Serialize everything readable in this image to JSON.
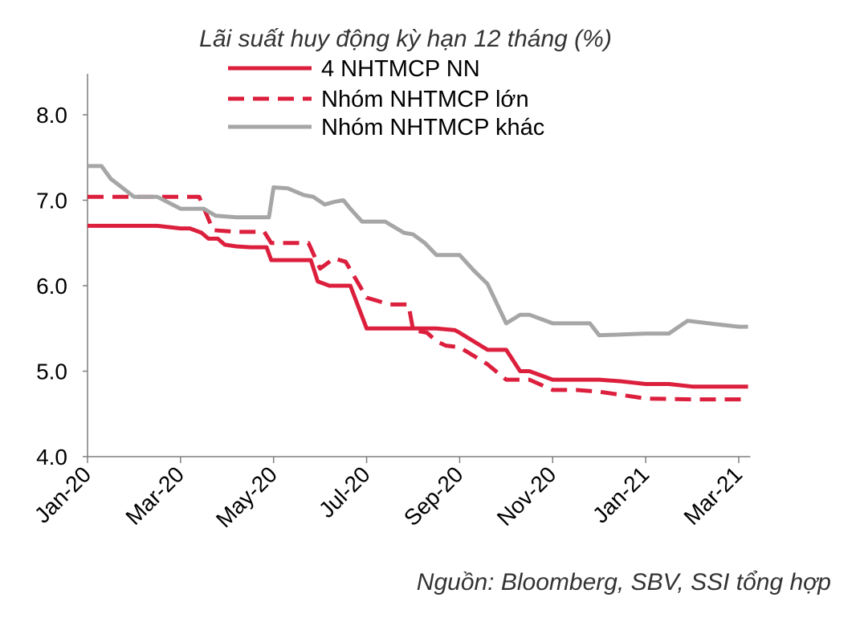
{
  "chart_data": {
    "type": "line",
    "title": "Lãi suất huy động kỳ hạn 12 tháng (%)",
    "xlabel": "",
    "ylabel": "",
    "ylim": [
      4.0,
      8.5
    ],
    "yticks": [
      4.0,
      5.0,
      6.0,
      7.0,
      8.0
    ],
    "ytick_labels": [
      "4.0",
      "5.0",
      "6.0",
      "7.0",
      "8.0"
    ],
    "xlim": [
      0,
      14.25
    ],
    "xticks": [
      0,
      2,
      4,
      6,
      8,
      10,
      12,
      14
    ],
    "xtick_labels": [
      "Jan-20",
      "Mar-20",
      "May-20",
      "Jul-20",
      "Sep-20",
      "Nov-20",
      "Jan-21",
      "Mar-21"
    ],
    "x_unit": "months since Jan-20",
    "legend_position": "top-center",
    "series": [
      {
        "name": "4 NHTMCP NN",
        "color": "#dc1f3d",
        "dash": "solid",
        "points": [
          [
            0,
            6.7
          ],
          [
            0.5,
            6.7
          ],
          [
            1.0,
            6.7
          ],
          [
            1.5,
            6.7
          ],
          [
            2.0,
            6.67
          ],
          [
            2.2,
            6.67
          ],
          [
            2.45,
            6.62
          ],
          [
            2.6,
            6.55
          ],
          [
            2.8,
            6.55
          ],
          [
            2.95,
            6.48
          ],
          [
            3.2,
            6.46
          ],
          [
            3.5,
            6.45
          ],
          [
            3.85,
            6.45
          ],
          [
            3.95,
            6.3
          ],
          [
            4.3,
            6.3
          ],
          [
            4.65,
            6.3
          ],
          [
            4.8,
            6.3
          ],
          [
            4.95,
            6.05
          ],
          [
            5.2,
            6.0
          ],
          [
            5.3,
            6.0
          ],
          [
            5.65,
            6.0
          ],
          [
            6.0,
            5.5
          ],
          [
            6.5,
            5.5
          ],
          [
            7.0,
            5.5
          ],
          [
            7.5,
            5.5
          ],
          [
            7.9,
            5.48
          ],
          [
            8.0,
            5.45
          ],
          [
            8.3,
            5.35
          ],
          [
            8.6,
            5.25
          ],
          [
            9.0,
            5.25
          ],
          [
            9.3,
            5.0
          ],
          [
            9.5,
            5.0
          ],
          [
            10.0,
            4.9
          ],
          [
            10.5,
            4.9
          ],
          [
            11.0,
            4.9
          ],
          [
            11.5,
            4.88
          ],
          [
            12.0,
            4.85
          ],
          [
            12.5,
            4.85
          ],
          [
            13.0,
            4.82
          ],
          [
            14.2,
            4.82
          ]
        ]
      },
      {
        "name": "Nhóm NHTMCP lớn",
        "color": "#dc1f3d",
        "dash": "dashed",
        "points": [
          [
            0,
            7.04
          ],
          [
            1.0,
            7.04
          ],
          [
            2.0,
            7.04
          ],
          [
            2.4,
            7.04
          ],
          [
            2.7,
            6.65
          ],
          [
            3.2,
            6.63
          ],
          [
            3.8,
            6.63
          ],
          [
            3.95,
            6.5
          ],
          [
            4.5,
            6.5
          ],
          [
            4.75,
            6.5
          ],
          [
            5.0,
            6.2
          ],
          [
            5.3,
            6.32
          ],
          [
            5.55,
            6.28
          ],
          [
            6.0,
            5.86
          ],
          [
            6.5,
            5.78
          ],
          [
            6.9,
            5.78
          ],
          [
            7.0,
            5.48
          ],
          [
            7.3,
            5.45
          ],
          [
            7.5,
            5.35
          ],
          [
            7.7,
            5.3
          ],
          [
            8.0,
            5.28
          ],
          [
            8.3,
            5.18
          ],
          [
            8.6,
            5.08
          ],
          [
            9.0,
            4.9
          ],
          [
            9.5,
            4.9
          ],
          [
            10.0,
            4.78
          ],
          [
            10.5,
            4.78
          ],
          [
            11.0,
            4.76
          ],
          [
            11.5,
            4.72
          ],
          [
            12.0,
            4.68
          ],
          [
            13.0,
            4.67
          ],
          [
            14.2,
            4.67
          ]
        ]
      },
      {
        "name": "Nhóm NHTMCP khác",
        "color": "#a6a6a6",
        "dash": "solid",
        "points": [
          [
            0,
            7.4
          ],
          [
            0.3,
            7.4
          ],
          [
            0.5,
            7.25
          ],
          [
            1.0,
            7.04
          ],
          [
            1.5,
            7.04
          ],
          [
            2.0,
            6.9
          ],
          [
            2.5,
            6.9
          ],
          [
            2.75,
            6.82
          ],
          [
            3.2,
            6.8
          ],
          [
            3.9,
            6.8
          ],
          [
            4.0,
            7.15
          ],
          [
            4.3,
            7.14
          ],
          [
            4.65,
            7.06
          ],
          [
            4.85,
            7.04
          ],
          [
            5.1,
            6.95
          ],
          [
            5.3,
            6.98
          ],
          [
            5.5,
            7.0
          ],
          [
            5.65,
            6.9
          ],
          [
            5.9,
            6.75
          ],
          [
            6.4,
            6.75
          ],
          [
            6.8,
            6.62
          ],
          [
            7.0,
            6.6
          ],
          [
            7.25,
            6.5
          ],
          [
            7.5,
            6.36
          ],
          [
            8.0,
            6.36
          ],
          [
            8.3,
            6.18
          ],
          [
            8.6,
            6.02
          ],
          [
            9.0,
            5.56
          ],
          [
            9.3,
            5.66
          ],
          [
            9.5,
            5.66
          ],
          [
            10.0,
            5.56
          ],
          [
            10.5,
            5.56
          ],
          [
            10.8,
            5.56
          ],
          [
            11.0,
            5.42
          ],
          [
            11.5,
            5.43
          ],
          [
            12.0,
            5.44
          ],
          [
            12.5,
            5.44
          ],
          [
            12.9,
            5.59
          ],
          [
            13.5,
            5.55
          ],
          [
            14.0,
            5.52
          ],
          [
            14.2,
            5.52
          ]
        ]
      }
    ],
    "source_note": "Nguồn:  Bloomberg, SBV, SSI tổng hợp"
  }
}
